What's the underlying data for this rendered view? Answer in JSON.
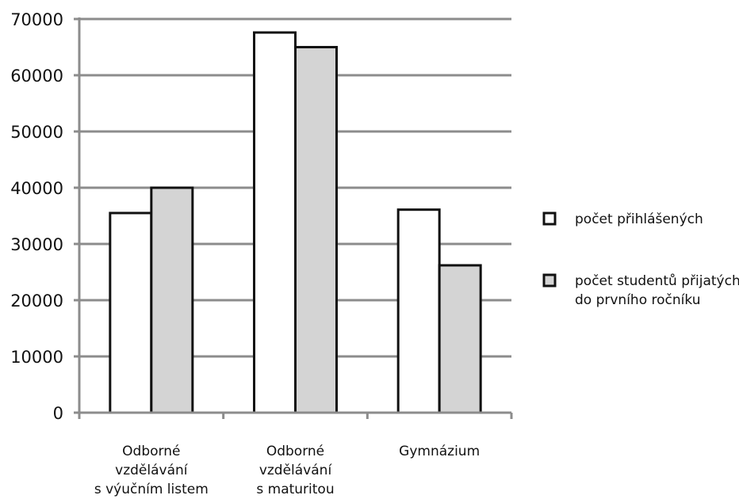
{
  "chart_data": {
    "type": "bar",
    "categories": [
      [
        "Odborné",
        "vzdělávání",
        "s výučním listem"
      ],
      [
        "Odborné",
        "vzdělávání",
        "s maturitou"
      ],
      [
        "Gymnázium"
      ]
    ],
    "series": [
      {
        "name": [
          "počet přihlášených"
        ],
        "color": "#ffffff",
        "values": [
          35500,
          67600,
          36100
        ]
      },
      {
        "name": [
          "počet studentů přijatých",
          "do prvního ročníku"
        ],
        "color": "#d4d4d4",
        "values": [
          40000,
          65000,
          26200
        ]
      }
    ],
    "ylim": [
      0,
      70000
    ],
    "yticks": [
      "0",
      "10000",
      "20000",
      "30000",
      "40000",
      "50000",
      "60000",
      "70000"
    ],
    "grid": true,
    "legend": "right"
  }
}
